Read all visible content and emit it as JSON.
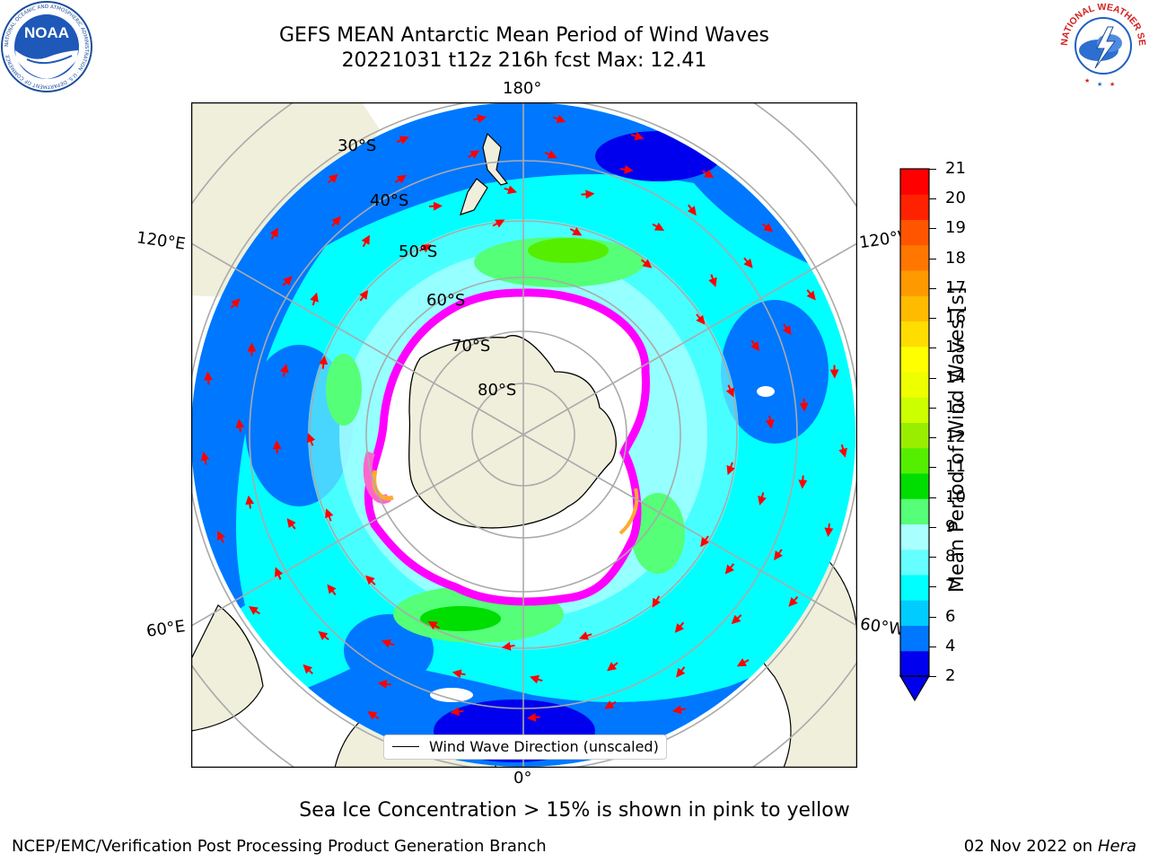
{
  "header": {
    "title_line1": "GEFS MEAN Antarctic Mean Period of Wind Waves",
    "title_line2": "20221031 t12z 216h fcst   Max: 12.41"
  },
  "map": {
    "projection": "south-polar-stereographic",
    "longitude_labels": {
      "top": "180°",
      "bottom": "0°",
      "left_upper": "120°E",
      "left_lower": "60°E",
      "right_upper": "120°W",
      "right_lower": "60°W"
    },
    "latitude_labels": [
      "30°S",
      "40°S",
      "50°S",
      "60°S",
      "70°S",
      "80°S"
    ],
    "legend_label": "Wind Wave Direction (unscaled)",
    "arrow_color": "#ff0000",
    "land_color": "#efefdc",
    "ice_colors": [
      "#ff00ff",
      "#ff66cc",
      "#ffaa33",
      "#ffff66"
    ]
  },
  "colorbar": {
    "label": "Mean Period of Wind Waves [s]",
    "ticks": [
      "21",
      "20",
      "19",
      "18",
      "17",
      "16",
      "15",
      "14",
      "13",
      "12",
      "11",
      "10",
      "9",
      "8",
      "7",
      "6",
      "4",
      "2"
    ],
    "colors_bottom_to_top": [
      "#0000ee",
      "#0077ff",
      "#00ccff",
      "#00ffff",
      "#66ffff",
      "#aaffff",
      "#55ff77",
      "#00dd00",
      "#55ee00",
      "#99ee00",
      "#ccff00",
      "#eeff00",
      "#ffff00",
      "#ffdd00",
      "#ffbb00",
      "#ff9900",
      "#ff7700",
      "#ff5500",
      "#ff2200",
      "#ff0000"
    ],
    "extend": "min"
  },
  "notes": {
    "ice_note": "Sea Ice Concentration > 15% is shown in pink to yellow"
  },
  "footer": {
    "left": "NCEP/EMC/Verification Post Processing Product Generation Branch",
    "right_date": "02 Nov 2022 on",
    "right_machine": "Hera"
  },
  "logos": {
    "noaa_text": "NOAA",
    "noaa_ring_text": "NATIONAL OCEANIC AND ATMOSPHERIC ADMINISTRATION · U.S. DEPARTMENT OF COMMERCE",
    "nws_ring_text": "NATIONAL WEATHER SERVICE"
  }
}
